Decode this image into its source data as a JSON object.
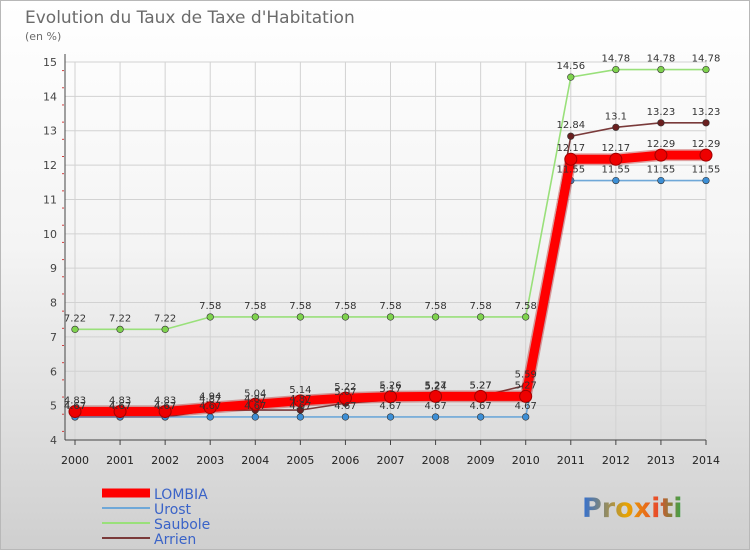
{
  "chart_data": {
    "type": "line",
    "title": "Evolution du Taux de Taxe d'Habitation",
    "subtitle": "(en %)",
    "xlabel": "",
    "ylabel": "",
    "x": [
      "2000",
      "2001",
      "2002",
      "2003",
      "2004",
      "2005",
      "2006",
      "2007",
      "2008",
      "2009",
      "2010",
      "2011",
      "2012",
      "2013",
      "2014"
    ],
    "ylim": [
      4,
      15
    ],
    "yticks": [
      "4",
      "5",
      "6",
      "7",
      "8",
      "9",
      "10",
      "11",
      "12",
      "13",
      "14",
      "15"
    ],
    "grid": true,
    "legend_position": "bottom-left",
    "series": [
      {
        "name": "LOMBIA",
        "color": "#ff0000",
        "marker": "#ee0000",
        "values": [
          4.83,
          4.83,
          4.83,
          4.94,
          5.04,
          5.14,
          5.22,
          5.26,
          5.27,
          5.27,
          5.27,
          12.17,
          12.17,
          12.29,
          12.29
        ],
        "labels": [
          "4.83",
          "4.83",
          "4.83",
          "4.94",
          "5.04",
          "5.14",
          "5.22",
          "5.26",
          "5.27",
          "5.27",
          "5.27",
          "12.17",
          "12.17",
          "12.29",
          "12.29"
        ]
      },
      {
        "name": "Urost",
        "color": "#6fa8d8",
        "marker": "#3d8fd6",
        "values": [
          4.67,
          4.67,
          4.67,
          4.67,
          4.67,
          4.67,
          4.67,
          4.67,
          4.67,
          4.67,
          4.67,
          11.55,
          11.55,
          11.55,
          11.55
        ],
        "labels": [
          "4.67",
          "4.67",
          "4.67",
          "4.67",
          "4.67",
          "4.67",
          "4.67",
          "4.67",
          "4.67",
          "4.67",
          "4.67",
          "11.55",
          "11.55",
          "11.55",
          "11.55"
        ]
      },
      {
        "name": "Saubole",
        "color": "#99e07a",
        "marker": "#7fd34e",
        "values": [
          7.22,
          7.22,
          7.22,
          7.58,
          7.58,
          7.58,
          7.58,
          7.58,
          7.58,
          7.58,
          7.58,
          14.56,
          14.78,
          14.78,
          14.78
        ],
        "labels": [
          "7.22",
          "7.22",
          "7.22",
          "7.58",
          "7.58",
          "7.58",
          "7.58",
          "7.58",
          "7.58",
          "7.58",
          "7.58",
          "14.56",
          "14.78",
          "14.78",
          "14.78"
        ]
      },
      {
        "name": "Arrien",
        "color": "#7a3a3a",
        "marker": "#6a1f1f",
        "values": [
          4.67,
          4.67,
          4.67,
          4.87,
          4.87,
          4.87,
          5.07,
          5.17,
          5.24,
          5.27,
          5.59,
          12.84,
          13.1,
          13.23,
          13.23
        ],
        "labels": [
          "4.67",
          "4.67",
          "4.67",
          "4.87",
          "4.87",
          "4.87",
          "5.07",
          "5.17",
          "5.24",
          "5.27",
          "5.59",
          "12.84",
          "13.1",
          "13.23",
          "13.23"
        ]
      }
    ]
  },
  "logo": {
    "text": "Proxiti"
  }
}
